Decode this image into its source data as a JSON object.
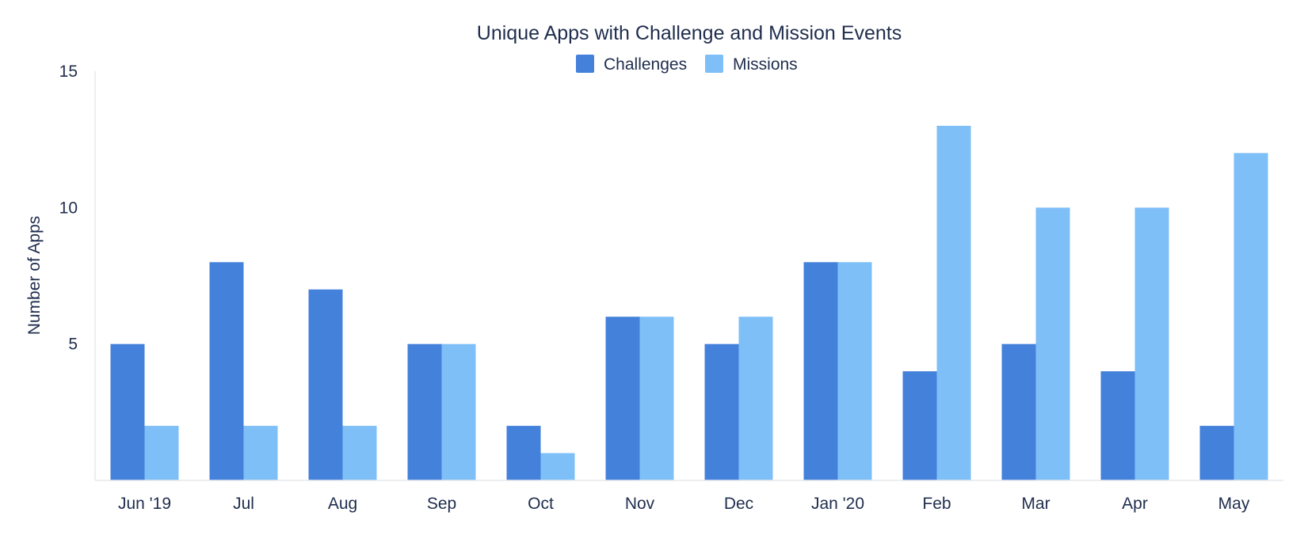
{
  "colors": {
    "challenges": "#4481db",
    "missions": "#7fbff8",
    "text": "#1f2d4d",
    "axis": "#e6e8ec"
  },
  "chart_data": {
    "type": "bar",
    "title": "Unique Apps with Challenge and Mission Events",
    "xlabel": "",
    "ylabel": "Number of Apps",
    "ylim": [
      0,
      15
    ],
    "yticks": [
      5,
      10,
      15
    ],
    "grid": false,
    "legend_position": "top-center",
    "categories": [
      "Jun '19",
      "Jul",
      "Aug",
      "Sep",
      "Oct",
      "Nov",
      "Dec",
      "Jan '20",
      "Feb",
      "Mar",
      "Apr",
      "May"
    ],
    "series": [
      {
        "name": "Challenges",
        "values": [
          5,
          8,
          7,
          5,
          2,
          6,
          5,
          8,
          4,
          5,
          4,
          2
        ]
      },
      {
        "name": "Missions",
        "values": [
          2,
          2,
          2,
          5,
          1,
          6,
          6,
          8,
          13,
          10,
          10,
          12
        ]
      }
    ]
  }
}
